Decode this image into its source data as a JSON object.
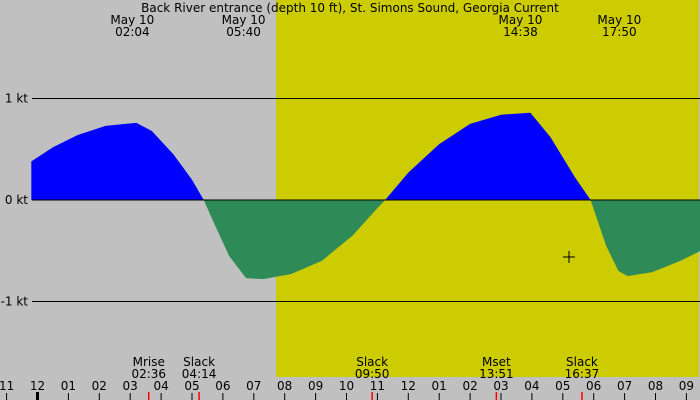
{
  "chart_data": {
    "type": "area",
    "title": "Back River entrance (depth 10 ft), St. Simons Sound, Georgia Current",
    "xlabel": "",
    "ylabel": "",
    "x_unit": "hours from 11:00 (May 9 -> May 10)",
    "xlim": [
      -0.2,
      22.6
    ],
    "ylim": [
      -1.97,
      2.0
    ],
    "y_ticks": [
      {
        "value": 1,
        "label": "1 kt"
      },
      {
        "value": 0,
        "label": "0 kt"
      },
      {
        "value": -1,
        "label": "-1 kt"
      }
    ],
    "hour_ticks": [
      "11",
      "12",
      "01",
      "02",
      "03",
      "04",
      "05",
      "06",
      "07",
      "08",
      "09",
      "10",
      "11",
      "12",
      "01",
      "02",
      "03",
      "04",
      "05",
      "06",
      "07",
      "08",
      "09"
    ],
    "daylight": {
      "start": 7.72,
      "end": 21.4
    },
    "top_events": [
      {
        "date": "May 10",
        "time": "02:04",
        "x": 15.07
      },
      {
        "date": "May 10",
        "time": "05:40",
        "x": 18.67
      },
      {
        "date": "May 10",
        "time": "14:38",
        "x": 27.63
      },
      {
        "date": "May 10",
        "time": "17:50",
        "x": 30.83
      }
    ],
    "bottom_events": [
      {
        "label": "Mrise",
        "time": "02:36",
        "x": 3.6
      },
      {
        "label": "Slack",
        "time": "04:14",
        "x": 5.23
      },
      {
        "label": "Slack",
        "time": "09:50",
        "x": 10.83
      },
      {
        "label": "Mset",
        "time": "13:51",
        "x": 14.85
      },
      {
        "label": "Slack",
        "time": "16:37",
        "x": 17.62
      }
    ],
    "red_ticks": [
      3.6,
      5.23,
      10.83,
      14.85,
      17.62
    ],
    "series": [
      {
        "color_flood": "#0000ff",
        "color_ebb": "#2e8b57",
        "points": [
          [
            -0.2,
            0.38
          ],
          [
            0.5,
            0.52
          ],
          [
            1.3,
            0.64
          ],
          [
            2.2,
            0.73
          ],
          [
            3.2,
            0.76
          ],
          [
            3.7,
            0.68
          ],
          [
            4.4,
            0.45
          ],
          [
            5.0,
            0.2
          ],
          [
            5.38,
            0.0
          ],
          [
            5.7,
            -0.22
          ],
          [
            6.2,
            -0.55
          ],
          [
            6.75,
            -0.77
          ],
          [
            7.3,
            -0.78
          ],
          [
            8.2,
            -0.73
          ],
          [
            9.2,
            -0.6
          ],
          [
            10.2,
            -0.35
          ],
          [
            11.0,
            -0.08
          ],
          [
            11.25,
            0.0
          ],
          [
            12.0,
            0.27
          ],
          [
            13.0,
            0.55
          ],
          [
            14.0,
            0.75
          ],
          [
            15.0,
            0.84
          ],
          [
            15.95,
            0.86
          ],
          [
            16.6,
            0.62
          ],
          [
            17.4,
            0.22
          ],
          [
            17.9,
            0.0
          ],
          [
            18.4,
            -0.45
          ],
          [
            18.8,
            -0.7
          ],
          [
            19.1,
            -0.75
          ],
          [
            19.9,
            -0.71
          ],
          [
            20.8,
            -0.6
          ],
          [
            21.6,
            -0.48
          ],
          [
            22.6,
            -0.27
          ]
        ]
      }
    ]
  }
}
